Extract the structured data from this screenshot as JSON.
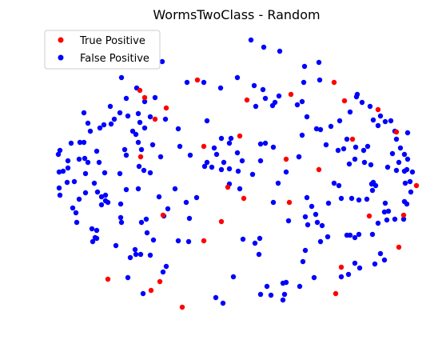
{
  "chart_data": {
    "type": "scatter",
    "title": "WormsTwoClass - Random",
    "xlabel": "",
    "ylabel": "",
    "axes": "off",
    "grid": false,
    "legend_position": "top-left",
    "series": [
      {
        "name": "True Positive",
        "color": "#ff0000",
        "points": [
          [
            175,
            113
          ],
          [
            181,
            122
          ],
          [
            208,
            135
          ],
          [
            194,
            149
          ],
          [
            247,
            100
          ],
          [
            309,
            125
          ],
          [
            364,
            118
          ],
          [
            418,
            103
          ],
          [
            431,
            126
          ],
          [
            473,
            137
          ],
          [
            496,
            165
          ],
          [
            441,
            174
          ],
          [
            176,
            196
          ],
          [
            255,
            183
          ],
          [
            300,
            170
          ],
          [
            358,
            199
          ],
          [
            399,
            212
          ],
          [
            285,
            234
          ],
          [
            305,
            248
          ],
          [
            277,
            277
          ],
          [
            362,
            253
          ],
          [
            204,
            269
          ],
          [
            255,
            301
          ],
          [
            135,
            349
          ],
          [
            200,
            352
          ],
          [
            189,
            363
          ],
          [
            228,
            384
          ],
          [
            427,
            334
          ],
          [
            420,
            367
          ],
          [
            499,
            309
          ],
          [
            505,
            269
          ],
          [
            462,
            270
          ],
          [
            521,
            232
          ]
        ]
      },
      {
        "name": "False Positive",
        "color": "#0000ff",
        "points": [
          [
            314,
            50
          ],
          [
            330,
            59
          ],
          [
            350,
            64
          ],
          [
            203,
            77
          ],
          [
            381,
            83
          ],
          [
            399,
            78
          ],
          [
            297,
            97
          ],
          [
            255,
            103
          ],
          [
            276,
            110
          ],
          [
            152,
            97
          ],
          [
            171,
            110
          ],
          [
            158,
            123
          ],
          [
            138,
            133
          ],
          [
            150,
            141
          ],
          [
            143,
            149
          ],
          [
            139,
            155
          ],
          [
            130,
            156
          ],
          [
            125,
            160
          ],
          [
            105,
            141
          ],
          [
            110,
            154
          ],
          [
            160,
            145
          ],
          [
            173,
            142
          ],
          [
            175,
            153
          ],
          [
            181,
            160
          ],
          [
            170,
            168
          ],
          [
            166,
            164
          ],
          [
            188,
            146
          ],
          [
            194,
            122
          ],
          [
            181,
            127
          ],
          [
            207,
            149
          ],
          [
            113,
            164
          ],
          [
            100,
            178
          ],
          [
            105,
            178
          ],
          [
            89,
            179
          ],
          [
            75,
            188
          ],
          [
            73,
            193
          ],
          [
            85,
            201
          ],
          [
            79,
            214
          ],
          [
            74,
            215
          ],
          [
            85,
            210
          ],
          [
            99,
            199
          ],
          [
            106,
            198
          ],
          [
            110,
            203
          ],
          [
            121,
            189
          ],
          [
            124,
            203
          ],
          [
            131,
            216
          ],
          [
            150,
            217
          ],
          [
            156,
            187
          ],
          [
            158,
            194
          ],
          [
            173,
            178
          ],
          [
            177,
            187
          ],
          [
            191,
            181
          ],
          [
            201,
            196
          ],
          [
            174,
            208
          ],
          [
            180,
            213
          ],
          [
            188,
            216
          ],
          [
            225,
            183
          ],
          [
            259,
            151
          ],
          [
            268,
            185
          ],
          [
            259,
            203
          ],
          [
            265,
            209
          ],
          [
            277,
            212
          ],
          [
            280,
            203
          ],
          [
            287,
            211
          ],
          [
            298,
            214
          ],
          [
            303,
            201
          ],
          [
            287,
            179
          ],
          [
            289,
            173
          ],
          [
            297,
            191
          ],
          [
            316,
            218
          ],
          [
            326,
            201
          ],
          [
            326,
            180
          ],
          [
            342,
            184
          ],
          [
            332,
            179
          ],
          [
            384,
            146
          ],
          [
            378,
            169
          ],
          [
            374,
            196
          ],
          [
            396,
            161
          ],
          [
            401,
            162
          ],
          [
            408,
            181
          ],
          [
            414,
            158
          ],
          [
            425,
            151
          ],
          [
            438,
            140
          ],
          [
            453,
            128
          ],
          [
            463,
            133
          ],
          [
            467,
            150
          ],
          [
            476,
            145
          ],
          [
            473,
            157
          ],
          [
            482,
            152
          ],
          [
            489,
            151
          ],
          [
            494,
            164
          ],
          [
            510,
            166
          ],
          [
            501,
            185
          ],
          [
            496,
            174
          ],
          [
            491,
            192
          ],
          [
            506,
            193
          ],
          [
            510,
            199
          ],
          [
            485,
            209
          ],
          [
            496,
            213
          ],
          [
            506,
            214
          ],
          [
            516,
            215
          ],
          [
            513,
            227
          ],
          [
            514,
            240
          ],
          [
            506,
            252
          ],
          [
            482,
            254
          ],
          [
            486,
            264
          ],
          [
            484,
            275
          ],
          [
            494,
            274
          ],
          [
            473,
            279
          ],
          [
            470,
            232
          ],
          [
            466,
            238
          ],
          [
            459,
            249
          ],
          [
            449,
            250
          ],
          [
            440,
            248
          ],
          [
            427,
            248
          ],
          [
            424,
            232
          ],
          [
            418,
            229
          ],
          [
            423,
            188
          ],
          [
            430,
            186
          ],
          [
            434,
            174
          ],
          [
            445,
            184
          ],
          [
            455,
            188
          ],
          [
            460,
            183
          ],
          [
            444,
            199
          ],
          [
            437,
            205
          ],
          [
            456,
            203
          ],
          [
            464,
            206
          ],
          [
            467,
            228
          ],
          [
            438,
            294
          ],
          [
            444,
            297
          ],
          [
            449,
            293
          ],
          [
            466,
            293
          ],
          [
            476,
            317
          ],
          [
            481,
            325
          ],
          [
            469,
            330
          ],
          [
            450,
            335
          ],
          [
            444,
            329
          ],
          [
            436,
            343
          ],
          [
            427,
            346
          ],
          [
            410,
            296
          ],
          [
            401,
            302
          ],
          [
            403,
            282
          ],
          [
            397,
            278
          ],
          [
            385,
            281
          ],
          [
            382,
            313
          ],
          [
            379,
            327
          ],
          [
            393,
            347
          ],
          [
            375,
            358
          ],
          [
            358,
            353
          ],
          [
            354,
            354
          ],
          [
            356,
            368
          ],
          [
            334,
            358
          ],
          [
            326,
            368
          ],
          [
            339,
            369
          ],
          [
            354,
            375
          ],
          [
            324,
            318
          ],
          [
            319,
            304
          ],
          [
            325,
            298
          ],
          [
            304,
            299
          ],
          [
            292,
            346
          ],
          [
            270,
            372
          ],
          [
            279,
            379
          ],
          [
            246,
            247
          ],
          [
            236,
            302
          ],
          [
            223,
            301
          ],
          [
            208,
            333
          ],
          [
            204,
            340
          ],
          [
            188,
            319
          ],
          [
            192,
            300
          ],
          [
            184,
            291
          ],
          [
            169,
            312
          ],
          [
            170,
            318
          ],
          [
            163,
            322
          ],
          [
            145,
            307
          ],
          [
            119,
            297
          ],
          [
            121,
            288
          ],
          [
            115,
            286
          ],
          [
            116,
            302
          ],
          [
            121,
            298
          ],
          [
            96,
            278
          ],
          [
            95,
            266
          ],
          [
            91,
            260
          ],
          [
            99,
            249
          ],
          [
            107,
            241
          ],
          [
            122,
            240
          ],
          [
            127,
            246
          ],
          [
            127,
            256
          ],
          [
            132,
            251
          ],
          [
            135,
            253
          ],
          [
            132,
            244
          ],
          [
            118,
            229
          ],
          [
            107,
            217
          ],
          [
            93,
            227
          ],
          [
            84,
            228
          ],
          [
            74,
            235
          ],
          [
            75,
            244
          ],
          [
            158,
            237
          ],
          [
            173,
            236
          ],
          [
            151,
            255
          ],
          [
            151,
            272
          ],
          [
            152,
            278
          ],
          [
            177,
            278
          ],
          [
            183,
            274
          ],
          [
            199,
            246
          ],
          [
            237,
            273
          ],
          [
            210,
            261
          ],
          [
            176,
            318
          ],
          [
            179,
            367
          ],
          [
            219,
            236
          ],
          [
            233,
            253
          ],
          [
            287,
            230
          ],
          [
            300,
            236
          ],
          [
            348,
            229
          ],
          [
            342,
            253
          ],
          [
            361,
            276
          ],
          [
            358,
            215
          ],
          [
            374,
            196
          ],
          [
            384,
            247
          ],
          [
            390,
            258
          ],
          [
            395,
            268
          ],
          [
            411,
            254
          ],
          [
            382,
            271
          ],
          [
            434,
            294
          ],
          [
            465,
            230
          ],
          [
            481,
            265
          ],
          [
            505,
            274
          ],
          [
            509,
            255
          ],
          [
            507,
            229
          ],
          [
            509,
            212
          ],
          [
            499,
            203
          ],
          [
            447,
            118
          ],
          [
            446,
            121
          ],
          [
            400,
            100
          ],
          [
            380,
            103
          ],
          [
            378,
            127
          ],
          [
            372,
            131
          ],
          [
            349,
            120
          ],
          [
            344,
            128
          ],
          [
            341,
            132
          ],
          [
            329,
            112
          ],
          [
            318,
            107
          ],
          [
            320,
            133
          ],
          [
            234,
            103
          ],
          [
            160,
            347
          ],
          [
            223,
            161
          ],
          [
            277,
            173
          ],
          [
            238,
            194
          ],
          [
            205,
            270
          ],
          [
            256,
            208
          ],
          [
            271,
            193
          ],
          [
            332,
            123
          ]
        ]
      }
    ]
  }
}
